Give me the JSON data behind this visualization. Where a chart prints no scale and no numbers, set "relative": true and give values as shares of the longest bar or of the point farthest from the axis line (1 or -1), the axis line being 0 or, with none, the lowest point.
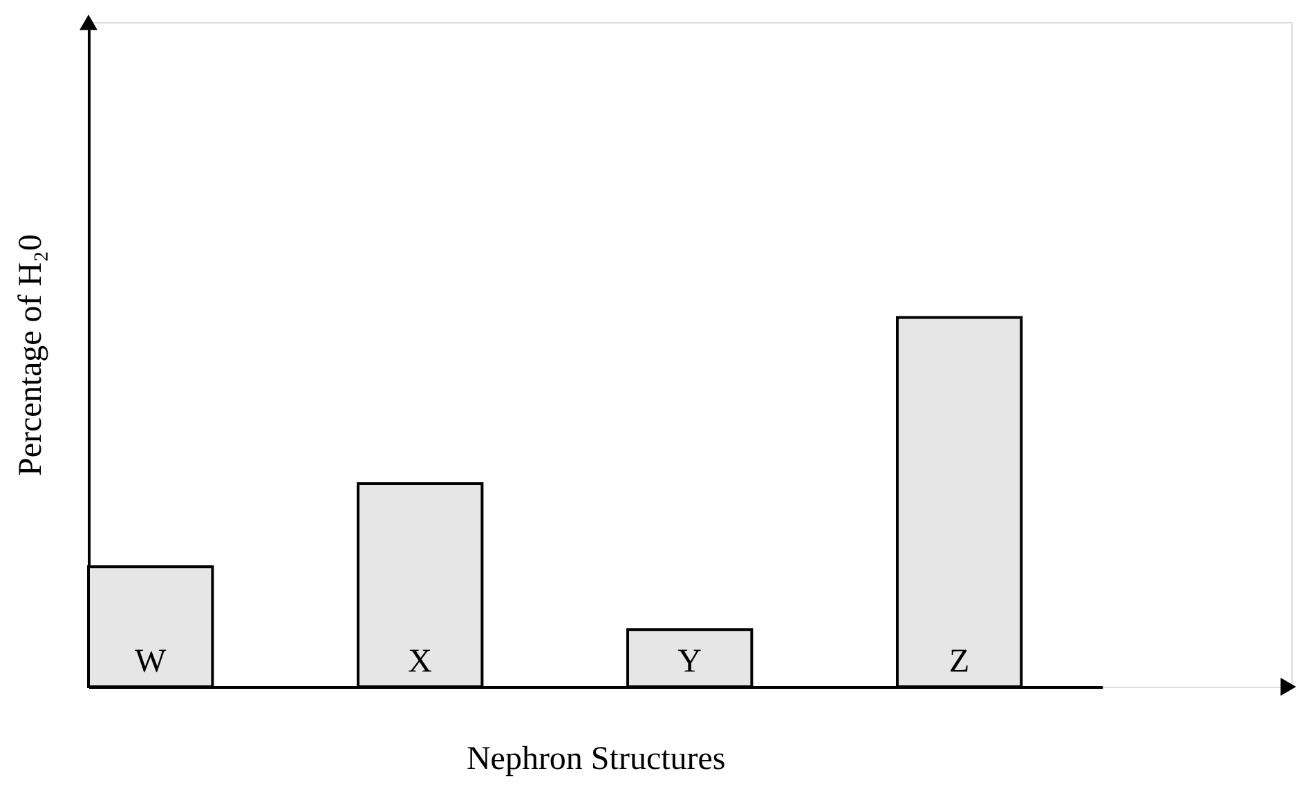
{
  "chart_data": {
    "type": "bar",
    "relative": true,
    "categories": [
      "W",
      "X",
      "Y",
      "Z"
    ],
    "values": [
      0.325,
      0.55,
      0.155,
      1
    ],
    "color": "#e6e6e6",
    "xlabel": "Nephron Structures",
    "ylabel": "Percentage of H₂0",
    "grid": false
  }
}
